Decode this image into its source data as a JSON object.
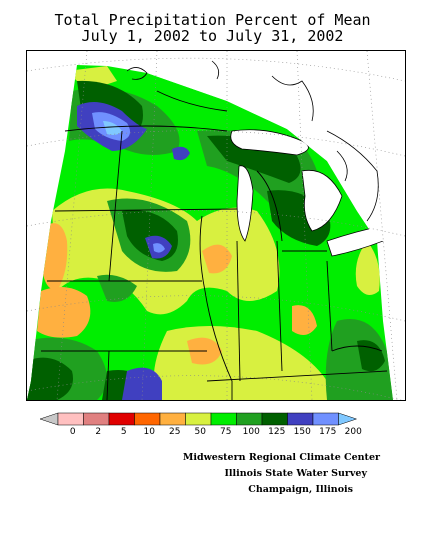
{
  "title": {
    "line1": "Total Precipitation Percent of Mean",
    "line2": "July 1, 2002 to July 31, 2002"
  },
  "legend": {
    "ticks": [
      "0",
      "2",
      "5",
      "10",
      "25",
      "50",
      "75",
      "100",
      "125",
      "150",
      "175",
      "200"
    ],
    "colors": [
      "#c8c8c8",
      "#ffc0c0",
      "#e08080",
      "#e00000",
      "#ff6600",
      "#ffb040",
      "#d8f040",
      "#00ee00",
      "#20a020",
      "#006000",
      "#4040c0",
      "#7090ff",
      "#80c8ff"
    ]
  },
  "credits": {
    "line1": "Midwestern Regional Climate Center",
    "line2": "Illinois State Water Survey",
    "line3": "Champaign, Illinois"
  },
  "map_colors": {
    "below_50": "#ffb040",
    "50_75": "#d8f040",
    "75_100": "#00ee00",
    "100_125": "#20a020",
    "125_150": "#006000",
    "150_175": "#4040c0",
    "175_200": "#7090ff",
    "above_200": "#80c8ff"
  }
}
